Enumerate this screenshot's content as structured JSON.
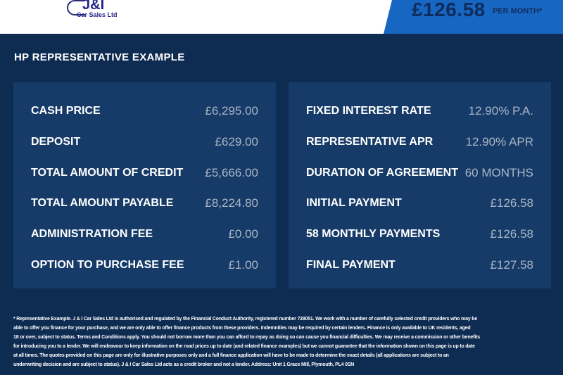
{
  "header": {
    "logo_text": "J&I",
    "logo_sub": "Car Sales Ltd",
    "price": "£126.58",
    "per_month": "PER MONTH*",
    "accent": "#1766c2"
  },
  "section_title": "HP REPRESENTATIVE EXAMPLE",
  "left": [
    {
      "label": "CASH PRICE",
      "value": "£6,295.00"
    },
    {
      "label": "DEPOSIT",
      "value": "£629.00"
    },
    {
      "label": "TOTAL AMOUNT OF CREDIT",
      "value": "£5,666.00"
    },
    {
      "label": "TOTAL AMOUNT PAYABLE",
      "value": "£8,224.80"
    },
    {
      "label": "ADMINISTRATION FEE",
      "value": "£0.00"
    },
    {
      "label": "OPTION TO PURCHASE FEE",
      "value": "£1.00"
    }
  ],
  "right": [
    {
      "label": "FIXED INTEREST RATE",
      "value": "12.90% P.A."
    },
    {
      "label": "REPRESENTATIVE APR",
      "value": "12.90% APR"
    },
    {
      "label": "DURATION OF AGREEMENT",
      "value": "60 MONTHS"
    },
    {
      "label": "INITIAL PAYMENT",
      "value": "£126.58"
    },
    {
      "label": "58 MONTHLY PAYMENTS",
      "value": "£126.58"
    },
    {
      "label": "FINAL PAYMENT",
      "value": "£127.58"
    }
  ],
  "disclaimer": [
    "* Representative Example. J & I Car Sales Ltd is authorised and regulated by the Financial Conduct Authority, registered number 728051. We work with a number of carefully selected credit providers who may be",
    "able to offer you finance for your purchase, and we are only able to offer finance products from these providers. Indemnities may be required by certain lenders. Finance is only available to UK residents, aged",
    "18 or over, subject to status. Terms and Conditions apply. You should not borrow more than you can afford to repay as doing so can cause you financial difficulties. We may receive a commission or other benefits",
    "for introducing you to a lender. We will endeavour to keep information on the road prices up to date (and related finance examples) but we cannot guarantee that the information shown on this page is up to date",
    "at all times. The quotes provided on this page are only for illustrative purposes only and a full finance application will have to be made to determine the exact details (all applications are subject to an",
    "underwriting decision and are subject to status). J & I Car Sales Ltd acts as a credit broker and not a lender. Address: Unit 1 Grace Mill, Plymouth, PL4 0SN"
  ]
}
